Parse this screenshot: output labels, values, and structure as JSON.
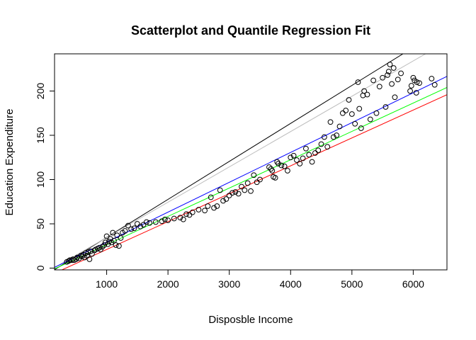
{
  "chart_data": {
    "type": "scatter",
    "title": "Scatterplot and Quantile Regression Fit",
    "xlabel": "Disposble Income",
    "ylabel": "Education Expenditure",
    "xlim": [
      150,
      6550
    ],
    "ylim": [
      -2,
      242
    ],
    "xticks": [
      1000,
      2000,
      3000,
      4000,
      5000,
      6000
    ],
    "yticks": [
      0,
      50,
      100,
      150,
      200
    ],
    "grid": false,
    "legend": "none",
    "point_color": "#000000",
    "points": [
      [
        350,
        7
      ],
      [
        380,
        8
      ],
      [
        400,
        9
      ],
      [
        430,
        9
      ],
      [
        450,
        10
      ],
      [
        470,
        9
      ],
      [
        500,
        10
      ],
      [
        520,
        12
      ],
      [
        550,
        11
      ],
      [
        580,
        14
      ],
      [
        600,
        13
      ],
      [
        620,
        15
      ],
      [
        640,
        12
      ],
      [
        660,
        17
      ],
      [
        680,
        14
      ],
      [
        700,
        18
      ],
      [
        720,
        10
      ],
      [
        740,
        19
      ],
      [
        760,
        16
      ],
      [
        800,
        20
      ],
      [
        820,
        21
      ],
      [
        850,
        22
      ],
      [
        880,
        23
      ],
      [
        900,
        21
      ],
      [
        930,
        24
      ],
      [
        960,
        26
      ],
      [
        980,
        29
      ],
      [
        1000,
        36
      ],
      [
        1020,
        27
      ],
      [
        1040,
        30
      ],
      [
        1060,
        33
      ],
      [
        1080,
        29
      ],
      [
        1100,
        40
      ],
      [
        1120,
        31
      ],
      [
        1150,
        26
      ],
      [
        1170,
        37
      ],
      [
        1200,
        25
      ],
      [
        1230,
        34
      ],
      [
        1260,
        40
      ],
      [
        1300,
        42
      ],
      [
        1350,
        48
      ],
      [
        1400,
        44
      ],
      [
        1450,
        45
      ],
      [
        1500,
        50
      ],
      [
        1550,
        47
      ],
      [
        1600,
        49
      ],
      [
        1650,
        52
      ],
      [
        1700,
        51
      ],
      [
        1800,
        52
      ],
      [
        1900,
        53
      ],
      [
        1950,
        55
      ],
      [
        2000,
        54
      ],
      [
        2100,
        56
      ],
      [
        2200,
        57
      ],
      [
        2250,
        55
      ],
      [
        2300,
        61
      ],
      [
        2350,
        60
      ],
      [
        2400,
        63
      ],
      [
        2500,
        66
      ],
      [
        2600,
        65
      ],
      [
        2650,
        70
      ],
      [
        2700,
        80
      ],
      [
        2750,
        68
      ],
      [
        2800,
        70
      ],
      [
        2850,
        88
      ],
      [
        2900,
        76
      ],
      [
        2950,
        78
      ],
      [
        3000,
        82
      ],
      [
        3050,
        85
      ],
      [
        3100,
        86
      ],
      [
        3150,
        84
      ],
      [
        3200,
        92
      ],
      [
        3250,
        88
      ],
      [
        3300,
        96
      ],
      [
        3350,
        87
      ],
      [
        3400,
        105
      ],
      [
        3450,
        97
      ],
      [
        3500,
        100
      ],
      [
        3650,
        114
      ],
      [
        3680,
        112
      ],
      [
        3700,
        110
      ],
      [
        3720,
        103
      ],
      [
        3750,
        102
      ],
      [
        3780,
        120
      ],
      [
        3800,
        118
      ],
      [
        3850,
        116
      ],
      [
        3900,
        115
      ],
      [
        3950,
        110
      ],
      [
        4000,
        125
      ],
      [
        4050,
        127
      ],
      [
        4100,
        122
      ],
      [
        4150,
        118
      ],
      [
        4200,
        124
      ],
      [
        4250,
        135
      ],
      [
        4300,
        128
      ],
      [
        4350,
        120
      ],
      [
        4400,
        130
      ],
      [
        4450,
        133
      ],
      [
        4500,
        140
      ],
      [
        4550,
        148
      ],
      [
        4600,
        137
      ],
      [
        4650,
        165
      ],
      [
        4700,
        148
      ],
      [
        4750,
        150
      ],
      [
        4800,
        160
      ],
      [
        4850,
        175
      ],
      [
        4900,
        178
      ],
      [
        4950,
        190
      ],
      [
        5000,
        174
      ],
      [
        5050,
        163
      ],
      [
        5100,
        210
      ],
      [
        5120,
        180
      ],
      [
        5150,
        158
      ],
      [
        5180,
        195
      ],
      [
        5200,
        200
      ],
      [
        5250,
        196
      ],
      [
        5300,
        168
      ],
      [
        5350,
        212
      ],
      [
        5400,
        175
      ],
      [
        5450,
        205
      ],
      [
        5500,
        215
      ],
      [
        5550,
        182
      ],
      [
        5580,
        218
      ],
      [
        5600,
        222
      ],
      [
        5620,
        230
      ],
      [
        5650,
        208
      ],
      [
        5680,
        226
      ],
      [
        5700,
        193
      ],
      [
        5750,
        213
      ],
      [
        5800,
        220
      ],
      [
        5950,
        200
      ],
      [
        5970,
        206
      ],
      [
        6000,
        215
      ],
      [
        6020,
        212
      ],
      [
        6050,
        198
      ],
      [
        6060,
        210
      ],
      [
        6100,
        209
      ],
      [
        6300,
        214
      ],
      [
        6350,
        207
      ]
    ],
    "fit_lines": [
      {
        "color": "#000000",
        "intercept": -8.2,
        "slope": 0.0429
      },
      {
        "color": "#bebebe",
        "intercept": -5.4,
        "slope": 0.0399
      },
      {
        "color": "#0000ff",
        "intercept": -4.2,
        "slope": 0.0337
      },
      {
        "color": "#00ff00",
        "intercept": -5.6,
        "slope": 0.032
      },
      {
        "color": "#ff0000",
        "intercept": -10.5,
        "slope": 0.0315
      }
    ]
  }
}
